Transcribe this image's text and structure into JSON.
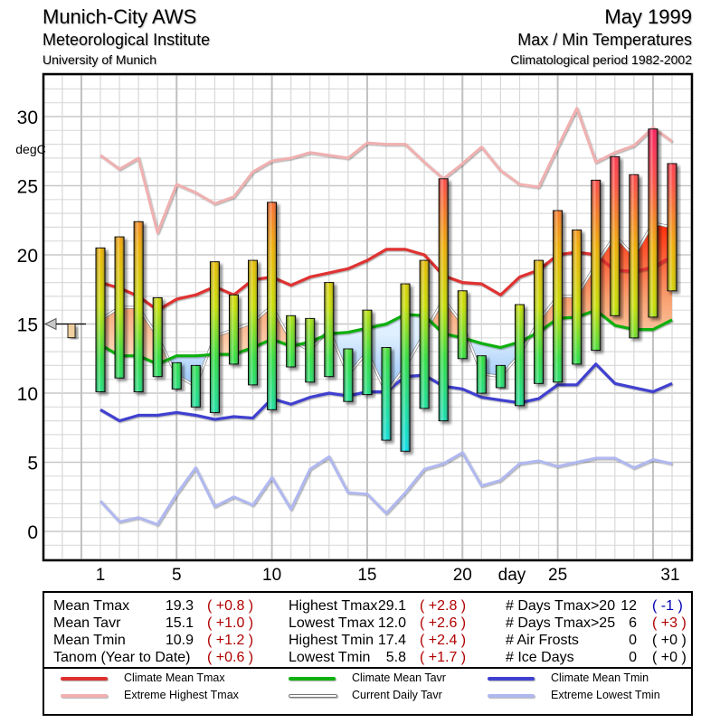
{
  "header": {
    "station": "Munich-City AWS",
    "institute": "Meteorological Institute",
    "university": "University of Munich",
    "period": "May 1999",
    "subject": "Max / Min Temperatures",
    "climatology": "Climatological period 1982-2002"
  },
  "chart_data": {
    "type": "bar",
    "title": "Max / Min Temperatures — May 1999",
    "xlabel": "day",
    "ylabel": "degC",
    "ylim": [
      -2,
      33
    ],
    "xlim": [
      1,
      31
    ],
    "y_ticks": [
      0,
      5,
      10,
      15,
      20,
      25,
      30
    ],
    "x_ticks": [
      1,
      5,
      10,
      15,
      20,
      25,
      31
    ],
    "grid": true,
    "days": [
      1,
      2,
      3,
      4,
      5,
      6,
      7,
      8,
      9,
      10,
      11,
      12,
      13,
      14,
      15,
      16,
      17,
      18,
      19,
      20,
      21,
      22,
      23,
      24,
      25,
      26,
      27,
      28,
      29,
      30,
      31
    ],
    "tmax": [
      20.5,
      21.3,
      22.4,
      16.9,
      12.2,
      12.0,
      19.5,
      17.1,
      19.6,
      23.8,
      15.6,
      15.4,
      18.0,
      13.2,
      16.0,
      13.3,
      17.9,
      19.6,
      25.5,
      17.4,
      12.7,
      12.0,
      16.4,
      19.6,
      23.2,
      21.8,
      25.4,
      27.1,
      25.8,
      29.1,
      26.6
    ],
    "tmin": [
      10.1,
      11.1,
      10.1,
      11.2,
      10.3,
      9.0,
      8.6,
      12.1,
      10.6,
      8.8,
      11.9,
      10.8,
      11.2,
      9.4,
      9.9,
      6.6,
      5.8,
      8.9,
      8.0,
      12.5,
      10.0,
      10.4,
      9.1,
      10.7,
      10.8,
      12.1,
      13.1,
      15.6,
      14.0,
      15.5,
      17.4
    ],
    "series": [
      {
        "name": "Climate Mean Tmax",
        "color": "#e03030",
        "values": [
          18.0,
          17.6,
          17.0,
          16.0,
          16.8,
          17.1,
          17.7,
          17.1,
          18.2,
          18.4,
          17.8,
          18.4,
          18.7,
          19.0,
          19.6,
          20.4,
          20.4,
          20.0,
          18.5,
          18.0,
          17.9,
          17.1,
          18.4,
          18.9,
          20.0,
          20.2,
          20.0,
          18.9,
          18.8,
          19.1,
          19.9
        ]
      },
      {
        "name": "Extreme Highest Tmax",
        "color": "#f0b0b0",
        "values": [
          27.2,
          26.2,
          27.0,
          21.6,
          25.1,
          24.5,
          23.7,
          24.2,
          26.0,
          26.8,
          27.0,
          27.4,
          27.2,
          27.0,
          28.1,
          28.0,
          28.0,
          26.7,
          25.5,
          26.6,
          27.8,
          26.1,
          25.1,
          24.9,
          27.8,
          30.6,
          26.7,
          27.4,
          27.9,
          29.2,
          28.2
        ]
      },
      {
        "name": "Climate Mean Tavr",
        "color": "#10b010",
        "values": [
          13.5,
          12.7,
          12.7,
          12.1,
          12.7,
          12.7,
          12.8,
          12.8,
          13.3,
          13.9,
          13.4,
          13.7,
          14.3,
          14.4,
          14.7,
          15.0,
          15.7,
          15.6,
          14.3,
          14.0,
          13.6,
          13.3,
          13.7,
          14.4,
          15.4,
          15.5,
          16.0,
          14.9,
          14.6,
          14.6,
          15.3
        ]
      },
      {
        "name": "Current Daily Tavr",
        "color": "#ffffff",
        "values": [
          15.3,
          16.2,
          16.2,
          14.1,
          11.3,
          10.5,
          14.1,
          14.6,
          15.1,
          16.3,
          13.8,
          13.1,
          14.6,
          11.3,
          13.0,
          10.0,
          11.9,
          14.3,
          16.8,
          15.0,
          11.4,
          11.2,
          12.8,
          15.2,
          17.0,
          17.0,
          19.3,
          21.4,
          19.9,
          22.3,
          22.0
        ]
      },
      {
        "name": "Climate Mean Tmin",
        "color": "#4040d0",
        "values": [
          8.8,
          8.0,
          8.4,
          8.4,
          8.6,
          8.4,
          8.1,
          8.3,
          8.2,
          9.6,
          9.2,
          9.7,
          10.0,
          9.8,
          10.1,
          10.1,
          11.2,
          11.3,
          10.5,
          10.3,
          9.7,
          9.5,
          9.3,
          9.6,
          10.6,
          10.6,
          12.1,
          10.7,
          10.4,
          10.1,
          10.7
        ]
      },
      {
        "name": "Extreme Lowest Tmin",
        "color": "#b0b8f0",
        "values": [
          2.2,
          0.7,
          1.0,
          0.5,
          2.7,
          4.6,
          1.8,
          2.5,
          1.9,
          3.9,
          1.6,
          4.5,
          5.4,
          2.8,
          2.7,
          1.3,
          2.8,
          4.5,
          4.9,
          5.7,
          3.3,
          3.7,
          4.9,
          5.1,
          4.7,
          5.0,
          5.3,
          5.3,
          4.6,
          5.2,
          4.9
        ]
      }
    ],
    "year_to_date_anomaly_marker": 0.6,
    "tick_labels": {
      "y": [
        "0",
        "5",
        "10",
        "15",
        "20",
        "25",
        "30"
      ],
      "x": [
        "1",
        "5",
        "10",
        "15",
        "20",
        "25",
        "31"
      ],
      "ylabel": "degC",
      "xlabel": "day"
    }
  },
  "stats": {
    "col1": [
      {
        "label": "Mean Tmax",
        "value": "19.3",
        "anomaly": "( +0.8 )",
        "tone": "red"
      },
      {
        "label": "Mean Tavr",
        "value": "15.1",
        "anomaly": "( +1.0 )",
        "tone": "red"
      },
      {
        "label": "Mean Tmin",
        "value": "10.9",
        "anomaly": "( +1.2 )",
        "tone": "red"
      },
      {
        "label": "Tanom (Year to Date)",
        "value": "",
        "anomaly": "( +0.6 )",
        "tone": "red"
      }
    ],
    "col2": [
      {
        "label": "Highest Tmax",
        "value": "29.1",
        "anomaly": "( +2.8 )",
        "tone": "red"
      },
      {
        "label": "Lowest Tmax",
        "value": "12.0",
        "anomaly": "( +2.6 )",
        "tone": "red"
      },
      {
        "label": "Highest Tmin",
        "value": "17.4",
        "anomaly": "( +2.4 )",
        "tone": "red"
      },
      {
        "label": "Lowest Tmin",
        "value": "5.8",
        "anomaly": "( +1.7 )",
        "tone": "red"
      }
    ],
    "col3": [
      {
        "label": "# Days Tmax>20",
        "value": "12",
        "anomaly": "( -1 )",
        "tone": "blue"
      },
      {
        "label": "# Days Tmax>25",
        "value": "6",
        "anomaly": "( +3 )",
        "tone": "red"
      },
      {
        "label": "# Air Frosts",
        "value": "0",
        "anomaly": "( +0 )",
        "tone": "blk"
      },
      {
        "label": "# Ice Days",
        "value": "0",
        "anomaly": "( +0 )",
        "tone": "blk"
      }
    ]
  },
  "legend": [
    {
      "label": "Climate Mean Tmax",
      "color": "#e03030"
    },
    {
      "label": "Extreme Highest Tmax",
      "color": "#f0b0b0"
    },
    {
      "label": "Climate Mean Tavr",
      "color": "#10b010"
    },
    {
      "label": "Current Daily Tavr",
      "color": "#ffffff"
    },
    {
      "label": "Climate Mean Tmin",
      "color": "#4040d0"
    },
    {
      "label": "Extreme Lowest Tmin",
      "color": "#b0b8f0"
    }
  ]
}
